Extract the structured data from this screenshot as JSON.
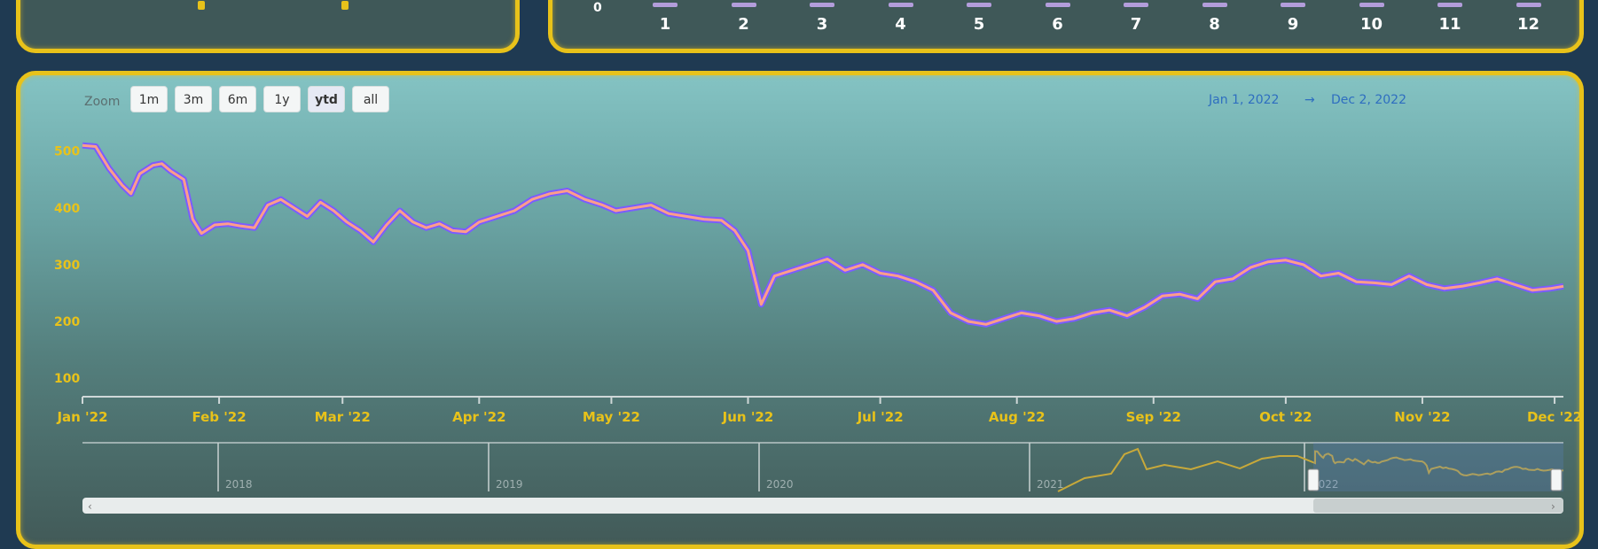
{
  "top_right_chart": {
    "x_ticks": [
      "1",
      "2",
      "3",
      "4",
      "5",
      "6",
      "7",
      "8",
      "9",
      "10",
      "11",
      "12"
    ],
    "y_label_visible": "0"
  },
  "zoom": {
    "label": "Zoom",
    "buttons": [
      "1m",
      "3m",
      "6m",
      "1y",
      "ytd",
      "all"
    ],
    "active": "ytd"
  },
  "date_range": {
    "from": "Jan 1, 2022",
    "separator": "→",
    "to": "Dec 2, 2022"
  },
  "colors": {
    "panel_border": "#e8c21a",
    "series_upper": "#7b5cff",
    "series_lower": "#ff9e8a",
    "axis_text": "#e8c21a",
    "navigator_line": "#c8a93a"
  },
  "chart_data": {
    "type": "line",
    "x_ticks": [
      "Jan '22",
      "Feb '22",
      "Mar '22",
      "Apr '22",
      "May '22",
      "Jun '22",
      "Jul '22",
      "Aug '22",
      "Sep '22",
      "Oct '22",
      "Nov '22",
      "Dec '22"
    ],
    "y_ticks": [
      "100",
      "200",
      "300",
      "400",
      "500"
    ],
    "ylim": [
      80,
      540
    ],
    "xlim": [
      "2022-01-01",
      "2022-12-03"
    ],
    "series": [
      {
        "values": [
          [
            "2022-01-01",
            510
          ],
          [
            "2022-01-04",
            508
          ],
          [
            "2022-01-07",
            470
          ],
          [
            "2022-01-10",
            440
          ],
          [
            "2022-01-12",
            425
          ],
          [
            "2022-01-14",
            460
          ],
          [
            "2022-01-17",
            475
          ],
          [
            "2022-01-19",
            478
          ],
          [
            "2022-01-21",
            465
          ],
          [
            "2022-01-24",
            450
          ],
          [
            "2022-01-26",
            380
          ],
          [
            "2022-01-28",
            355
          ],
          [
            "2022-01-31",
            370
          ],
          [
            "2022-02-03",
            372
          ],
          [
            "2022-02-06",
            368
          ],
          [
            "2022-02-09",
            365
          ],
          [
            "2022-02-12",
            405
          ],
          [
            "2022-02-15",
            415
          ],
          [
            "2022-02-18",
            400
          ],
          [
            "2022-02-21",
            385
          ],
          [
            "2022-02-24",
            410
          ],
          [
            "2022-02-27",
            395
          ],
          [
            "2022-03-02",
            375
          ],
          [
            "2022-03-05",
            360
          ],
          [
            "2022-03-08",
            340
          ],
          [
            "2022-03-11",
            370
          ],
          [
            "2022-03-14",
            395
          ],
          [
            "2022-03-17",
            375
          ],
          [
            "2022-03-20",
            365
          ],
          [
            "2022-03-23",
            372
          ],
          [
            "2022-03-26",
            360
          ],
          [
            "2022-03-29",
            358
          ],
          [
            "2022-04-01",
            375
          ],
          [
            "2022-04-05",
            385
          ],
          [
            "2022-04-09",
            395
          ],
          [
            "2022-04-13",
            415
          ],
          [
            "2022-04-17",
            425
          ],
          [
            "2022-04-21",
            430
          ],
          [
            "2022-04-25",
            415
          ],
          [
            "2022-04-29",
            405
          ],
          [
            "2022-05-02",
            395
          ],
          [
            "2022-05-06",
            400
          ],
          [
            "2022-05-10",
            405
          ],
          [
            "2022-05-14",
            390
          ],
          [
            "2022-05-18",
            385
          ],
          [
            "2022-05-22",
            380
          ],
          [
            "2022-05-26",
            378
          ],
          [
            "2022-05-29",
            360
          ],
          [
            "2022-06-01",
            325
          ],
          [
            "2022-06-04",
            230
          ],
          [
            "2022-06-07",
            280
          ],
          [
            "2022-06-11",
            290
          ],
          [
            "2022-06-15",
            300
          ],
          [
            "2022-06-19",
            310
          ],
          [
            "2022-06-23",
            290
          ],
          [
            "2022-06-27",
            300
          ],
          [
            "2022-07-01",
            285
          ],
          [
            "2022-07-05",
            280
          ],
          [
            "2022-07-09",
            270
          ],
          [
            "2022-07-13",
            255
          ],
          [
            "2022-07-17",
            215
          ],
          [
            "2022-07-21",
            200
          ],
          [
            "2022-07-25",
            195
          ],
          [
            "2022-07-29",
            205
          ],
          [
            "2022-08-02",
            215
          ],
          [
            "2022-08-06",
            210
          ],
          [
            "2022-08-10",
            200
          ],
          [
            "2022-08-14",
            205
          ],
          [
            "2022-08-18",
            215
          ],
          [
            "2022-08-22",
            220
          ],
          [
            "2022-08-26",
            210
          ],
          [
            "2022-08-30",
            225
          ],
          [
            "2022-09-03",
            245
          ],
          [
            "2022-09-07",
            248
          ],
          [
            "2022-09-11",
            240
          ],
          [
            "2022-09-15",
            270
          ],
          [
            "2022-09-19",
            275
          ],
          [
            "2022-09-23",
            295
          ],
          [
            "2022-09-27",
            305
          ],
          [
            "2022-10-01",
            308
          ],
          [
            "2022-10-05",
            300
          ],
          [
            "2022-10-09",
            280
          ],
          [
            "2022-10-13",
            285
          ],
          [
            "2022-10-17",
            270
          ],
          [
            "2022-10-21",
            268
          ],
          [
            "2022-10-25",
            265
          ],
          [
            "2022-10-29",
            280
          ],
          [
            "2022-11-02",
            265
          ],
          [
            "2022-11-06",
            258
          ],
          [
            "2022-11-10",
            262
          ],
          [
            "2022-11-14",
            268
          ],
          [
            "2022-11-18",
            275
          ],
          [
            "2022-11-22",
            265
          ],
          [
            "2022-11-26",
            255
          ],
          [
            "2022-11-30",
            258
          ],
          [
            "2022-12-03",
            262
          ]
        ]
      }
    ],
    "grid": false
  },
  "navigator": {
    "year_labels": [
      "2018",
      "2019",
      "2020",
      "2021",
      "2022"
    ]
  }
}
